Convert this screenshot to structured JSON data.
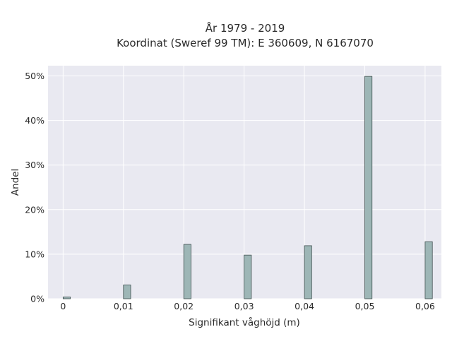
{
  "chart_data": {
    "type": "bar",
    "title_lines": [
      "År 1979 - 2019",
      "Koordinat (Sweref 99 TM): E 360609, N 6167070"
    ],
    "xlabel": "Signifikant våghöjd (m)",
    "ylabel": "Andel",
    "x": [
      0.0,
      0.01,
      0.02,
      0.03,
      0.04,
      0.05,
      0.06
    ],
    "values": [
      0.4,
      3.1,
      12.2,
      9.8,
      11.9,
      49.9,
      12.8
    ],
    "xlim": [
      -0.0025,
      0.0627
    ],
    "ylim": [
      0,
      52.3
    ],
    "x_ticks": [
      {
        "value": 0.0,
        "label": "0"
      },
      {
        "value": 0.01,
        "label": "0,01"
      },
      {
        "value": 0.02,
        "label": "0,02"
      },
      {
        "value": 0.03,
        "label": "0,03"
      },
      {
        "value": 0.04,
        "label": "0,04"
      },
      {
        "value": 0.05,
        "label": "0,05"
      },
      {
        "value": 0.06,
        "label": "0,06"
      }
    ],
    "y_ticks": [
      {
        "value": 0,
        "label": "0%"
      },
      {
        "value": 10,
        "label": "10%"
      },
      {
        "value": 20,
        "label": "20%"
      },
      {
        "value": 30,
        "label": "30%"
      },
      {
        "value": 40,
        "label": "40%"
      },
      {
        "value": 50,
        "label": "50%"
      }
    ],
    "bar_width": 0.0012,
    "bar_offset": 0.0006,
    "grid": true,
    "colors": {
      "plot_bg": "#e9e9f1",
      "grid": "#ffffff",
      "bar_fill": "#9db6b6",
      "bar_stroke": "#3f4f4f"
    }
  }
}
